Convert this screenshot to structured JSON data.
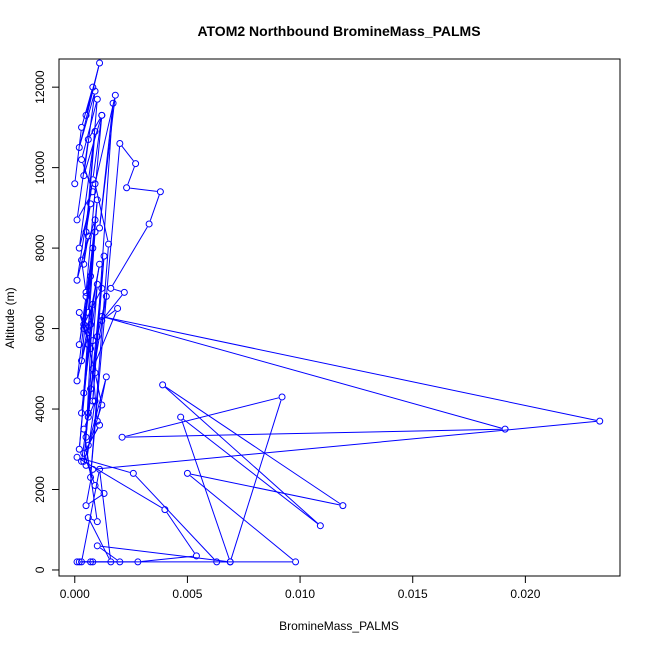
{
  "chart_data": {
    "type": "line",
    "title": "ATOM2 Northbound BromineMass_PALMS",
    "xlabel": "BromineMass_PALMS",
    "ylabel": "Altitude (m)",
    "xlim": [
      -0.0007,
      0.0242
    ],
    "ylim": [
      -150,
      12700
    ],
    "xticks": [
      0.0,
      0.005,
      0.01,
      0.015,
      0.02
    ],
    "xtick_labels": [
      "0.000",
      "0.005",
      "0.010",
      "0.015",
      "0.020"
    ],
    "yticks": [
      0,
      2000,
      4000,
      6000,
      8000,
      10000,
      12000
    ],
    "ytick_labels": [
      "0",
      "2000",
      "4000",
      "6000",
      "8000",
      "10000",
      "12000"
    ],
    "grid": false,
    "legend": "none",
    "series_color": "#0000ff",
    "marker": "open-circle",
    "series": [
      {
        "x": [
          0.0,
          0.0003,
          0.0008,
          0.0005,
          0.0011,
          0.0002,
          0.0009,
          0.0004,
          0.0012,
          0.0006,
          0.0001,
          0.0008,
          0.0003,
          0.001,
          0.0005,
          0.0007,
          0.0002,
          0.0009,
          0.0004,
          0.0006,
          0.0001,
          0.0008,
          0.0012,
          0.0005,
          0.0003,
          0.0009,
          0.0006,
          0.001,
          0.0004,
          0.0007,
          0.0002,
          0.0005,
          0.0008,
          0.0003,
          0.0011,
          0.0006,
          0.0001,
          0.0009,
          0.0004,
          0.0007,
          0.0003,
          0.001,
          0.0005,
          0.0008,
          0.0002,
          0.0006,
          0.0009,
          0.0012,
          0.0004,
          0.0007,
          0.0014,
          0.001,
          0.0006,
          0.0013,
          0.0008,
          0.0017,
          0.0011,
          0.0018,
          0.0009,
          0.0015,
          0.0007,
          0.002,
          0.0027,
          0.0023,
          0.0038,
          0.0033,
          0.0016,
          0.0022,
          0.0012,
          0.0019,
          0.0008,
          0.001,
          0.0014,
          0.0006,
          0.0011,
          0.0004,
          0.0009,
          0.0013,
          0.0005,
          0.0008,
          0.0233,
          0.0012,
          0.0191,
          0.0021,
          0.0092,
          0.0069,
          0.0047,
          0.0109,
          0.0039,
          0.0119,
          0.005,
          0.0098,
          0.0063,
          0.0026,
          0.0001,
          0.004,
          0.0054,
          0.0028,
          0.0002,
          0.0069,
          0.001,
          0.002,
          0.0001,
          0.0007,
          0.0008,
          0.0003,
          0.0011,
          0.0016,
          0.0006,
          0.001,
          0.0004,
          0.0009,
          0.0005,
          0.0003,
          0.0006,
          0.0008,
          0.0002,
          0.0007,
          0.0004,
          0.0012
        ],
        "y": [
          9600,
          11000,
          12000,
          11300,
          12600,
          10500,
          11900,
          9800,
          11300,
          10700,
          8700,
          9400,
          10200,
          11700,
          8400,
          9100,
          8000,
          10900,
          7600,
          8300,
          7200,
          9700,
          11300,
          6900,
          7700,
          8700,
          6400,
          9200,
          6000,
          7300,
          5600,
          6800,
          8000,
          5200,
          7600,
          5900,
          4700,
          8400,
          4400,
          6100,
          3900,
          7100,
          3300,
          6600,
          3000,
          5600,
          4900,
          4100,
          2700,
          4500,
          6800,
          5800,
          3800,
          7800,
          4200,
          11600,
          8500,
          11800,
          9600,
          8100,
          2300,
          10600,
          10100,
          9500,
          9400,
          8600,
          7000,
          6900,
          6200,
          6500,
          5000,
          3700,
          4800,
          3100,
          3600,
          2900,
          2100,
          1900,
          1600,
          2500,
          3700,
          6300,
          3500,
          3300,
          4300,
          200,
          3800,
          1100,
          4600,
          1600,
          2400,
          200,
          200,
          2400,
          2800,
          1500,
          350,
          200,
          200,
          200,
          600,
          200,
          200,
          200,
          200,
          200,
          2500,
          200,
          1300,
          1200,
          3500,
          4200,
          2600,
          2700,
          3900,
          5700,
          6400,
          5500,
          6100,
          7000
        ]
      }
    ]
  }
}
